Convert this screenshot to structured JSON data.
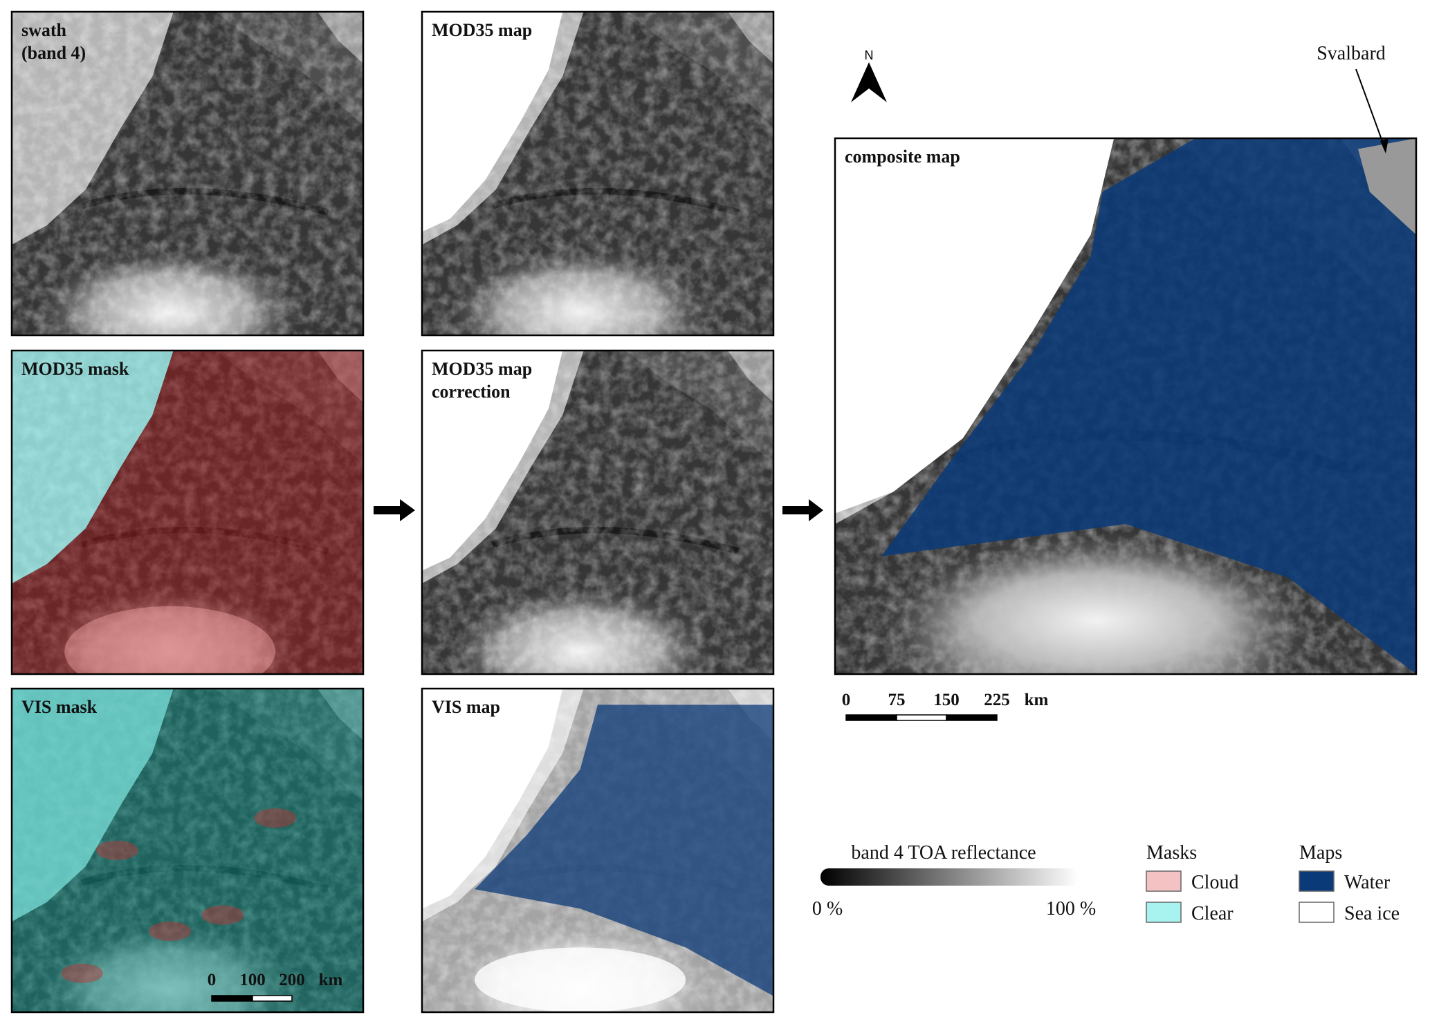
{
  "panels": [
    {
      "label": [
        "swath",
        "(band 4)"
      ]
    },
    {
      "label": [
        "MOD35 mask"
      ]
    },
    {
      "label": [
        "VIS mask"
      ]
    },
    {
      "label": [
        "MOD35 map"
      ]
    },
    {
      "label": [
        "MOD35 map",
        "correction"
      ]
    },
    {
      "label": [
        "VIS map"
      ]
    },
    {
      "label": [
        "composite map"
      ]
    }
  ],
  "north": "N",
  "place_label": "Svalbard",
  "small_scale_bar": {
    "ticks": [
      "0",
      "100",
      "200"
    ],
    "unit": "km"
  },
  "large_scale_bar": {
    "ticks": [
      "0",
      "75",
      "150",
      "225"
    ],
    "unit": "km"
  },
  "legend": {
    "gradient": {
      "title": "band 4 TOA reflectance",
      "min": "0 %",
      "max": "100 %"
    },
    "masks": {
      "title": "Masks",
      "items": [
        {
          "label": "Cloud",
          "color": "#f4c2c2"
        },
        {
          "label": "Clear",
          "color": "#a8f2f0"
        }
      ]
    },
    "maps": {
      "title": "Maps",
      "items": [
        {
          "label": "Water",
          "color": "#0b3a78"
        },
        {
          "label": "Sea ice",
          "color": "#ffffff"
        }
      ]
    }
  }
}
